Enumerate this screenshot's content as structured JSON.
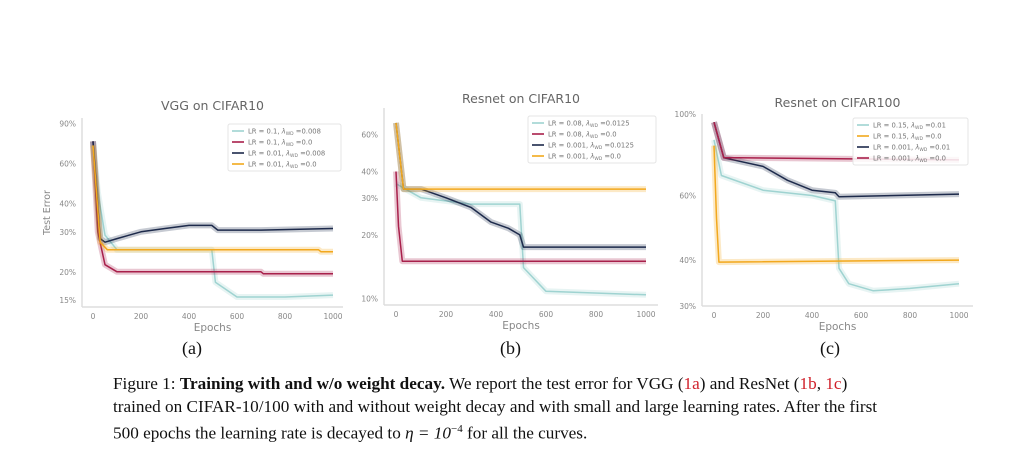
{
  "figure": {
    "sublabels": [
      "(a)",
      "(b)",
      "(c)"
    ],
    "caption": {
      "prefix": "Figure 1: ",
      "bold": "Training with and w/o weight decay.",
      "line1_a": " We report the test error for VGG (",
      "ref_1a": "1a",
      "line1_b": ") and ResNet (",
      "ref_1b": "1b",
      "line1_c": ", ",
      "ref_1c": "1c",
      "line1_d": ")",
      "line2": "trained on CIFAR-10/100 with and without weight decay and with small and large learning rates. After the first",
      "line3_a": "500 epochs the learning rate is decayed to ",
      "eta": "η = 10",
      "exp": "−4",
      "line3_b": " for all the curves."
    }
  },
  "colors": {
    "cyan": "#9fd3d1",
    "red": "#a8204b",
    "navy": "#1d2a4b",
    "orange": "#f2a81d",
    "axis": "#dddddd",
    "tick_text": "#888888",
    "title_text": "#666666"
  },
  "chart_data": [
    {
      "type": "line",
      "title": "VGG on CIFAR10",
      "xlabel": "Epochs",
      "ylabel": "Test Error",
      "yscale": "log",
      "xlim": [
        0,
        1000
      ],
      "ylim": [
        14,
        95
      ],
      "xticks": [
        0,
        200,
        400,
        600,
        800,
        1000
      ],
      "yticks": [
        15,
        20,
        30,
        40,
        60,
        90
      ],
      "ytick_labels": [
        "15%",
        "20%",
        "30%",
        "40%",
        "60%",
        "90%"
      ],
      "grid": false,
      "legend_position": "top-right",
      "series": [
        {
          "name": "LR = 0.1, λWD =0.008",
          "label_main": "LR = 0.1, ",
          "label_val": " =0.008",
          "color": "#9fd3d1",
          "points": [
            [
              0,
              75
            ],
            [
              20,
              45
            ],
            [
              50,
              29
            ],
            [
              100,
              25
            ],
            [
              300,
              25
            ],
            [
              495,
              25
            ],
            [
              510,
              18
            ],
            [
              600,
              15.5
            ],
            [
              800,
              15.5
            ],
            [
              1000,
              15.8
            ]
          ]
        },
        {
          "name": "LR = 0.1, λWD =0.0",
          "label_main": "LR = 0.1, ",
          "label_val": " =0.0",
          "color": "#a8204b",
          "points": [
            [
              0,
              75
            ],
            [
              20,
              30
            ],
            [
              50,
              21.5
            ],
            [
              100,
              20
            ],
            [
              700,
              20
            ],
            [
              710,
              19.6
            ],
            [
              1000,
              19.6
            ]
          ]
        },
        {
          "name": "LR = 0.01, λWD =0.008",
          "label_main": "LR = 0.01, ",
          "label_val": " =0.008",
          "color": "#1d2a4b",
          "points": [
            [
              0,
              75
            ],
            [
              30,
              28
            ],
            [
              50,
              27
            ],
            [
              100,
              28
            ],
            [
              200,
              30
            ],
            [
              300,
              31
            ],
            [
              400,
              32
            ],
            [
              495,
              32
            ],
            [
              520,
              30.5
            ],
            [
              700,
              30.5
            ],
            [
              1000,
              31
            ]
          ]
        },
        {
          "name": "LR = 0.01, λWD =0.0",
          "label_main": "LR = 0.01, ",
          "label_val": " =0.0",
          "color": "#f2a81d",
          "points": [
            [
              0,
              72
            ],
            [
              30,
              27
            ],
            [
              60,
              25
            ],
            [
              500,
              25
            ],
            [
              940,
              25
            ],
            [
              950,
              24.5
            ],
            [
              1000,
              24.5
            ]
          ]
        }
      ]
    },
    {
      "type": "line",
      "title": "Resnet on CIFAR10",
      "xlabel": "Epochs",
      "ylabel": "",
      "yscale": "log",
      "xlim": [
        0,
        1000
      ],
      "ylim": [
        9.3,
        80
      ],
      "xticks": [
        0,
        200,
        400,
        600,
        800,
        1000
      ],
      "yticks": [
        10,
        20,
        30,
        40,
        60
      ],
      "ytick_labels": [
        "10%",
        "20%",
        "30%",
        "40%",
        "60%"
      ],
      "grid": false,
      "legend_position": "top-right",
      "series": [
        {
          "name": "LR = 0.08, λWD =0.0125",
          "label_main": "LR = 0.08, ",
          "label_val": " =0.0125",
          "color": "#9fd3d1",
          "points": [
            [
              0,
              35
            ],
            [
              100,
              30
            ],
            [
              300,
              28
            ],
            [
              495,
              28
            ],
            [
              510,
              14
            ],
            [
              600,
              10.8
            ],
            [
              1000,
              10.4
            ]
          ]
        },
        {
          "name": "LR = 0.08, λWD =0.0",
          "label_main": "LR = 0.08, ",
          "label_val": " =0.0",
          "color": "#a8204b",
          "points": [
            [
              0,
              40
            ],
            [
              10,
              22
            ],
            [
              25,
              15
            ],
            [
              1000,
              15
            ]
          ]
        },
        {
          "name": "LR = 0.001, λWD =0.0125",
          "label_main": "LR = 0.001, ",
          "label_val": " =0.0125",
          "color": "#1d2a4b",
          "points": [
            [
              0,
              68
            ],
            [
              30,
              33
            ],
            [
              100,
              33
            ],
            [
              200,
              30
            ],
            [
              300,
              27
            ],
            [
              380,
              23
            ],
            [
              450,
              21.5
            ],
            [
              495,
              20
            ],
            [
              510,
              17.5
            ],
            [
              1000,
              17.5
            ]
          ]
        },
        {
          "name": "LR = 0.001, λWD =0.0",
          "label_main": "LR = 0.001, ",
          "label_val": " =0.0",
          "color": "#f2a81d",
          "points": [
            [
              0,
              68
            ],
            [
              30,
              33
            ],
            [
              1000,
              33
            ]
          ]
        }
      ]
    },
    {
      "type": "line",
      "title": "Resnet on CIFAR100",
      "xlabel": "Epochs",
      "ylabel": "",
      "yscale": "log",
      "xlim": [
        0,
        1000
      ],
      "ylim": [
        30,
        100
      ],
      "xticks": [
        0,
        200,
        400,
        600,
        800,
        1000
      ],
      "yticks": [
        30,
        40,
        60,
        100
      ],
      "ytick_labels": [
        "30%",
        "40%",
        "60%",
        "100%"
      ],
      "grid": false,
      "legend_position": "top-right",
      "series": [
        {
          "name": "LR = 0.15, λWD =0.01",
          "label_main": "LR = 0.15, ",
          "label_val": " =0.01",
          "color": "#9fd3d1",
          "points": [
            [
              0,
              85
            ],
            [
              30,
              68
            ],
            [
              200,
              62
            ],
            [
              400,
              60
            ],
            [
              495,
              58
            ],
            [
              510,
              38
            ],
            [
              550,
              34.5
            ],
            [
              650,
              33
            ],
            [
              800,
              33.5
            ],
            [
              1000,
              34.5
            ]
          ]
        },
        {
          "name": "LR = 0.15, λWD =0.0",
          "label_main": "LR = 0.15, ",
          "label_val": " =0.0",
          "color": "#f2a81d",
          "points": [
            [
              0,
              82
            ],
            [
              10,
              52
            ],
            [
              20,
              39.5
            ],
            [
              1000,
              40
            ]
          ]
        },
        {
          "name": "LR = 0.001, λWD =0.01",
          "label_main": "LR = 0.001, ",
          "label_val": " =0.01",
          "color": "#1d2a4b",
          "points": [
            [
              0,
              95
            ],
            [
              40,
              76
            ],
            [
              200,
              72
            ],
            [
              300,
              66
            ],
            [
              400,
              62
            ],
            [
              495,
              61
            ],
            [
              510,
              59.5
            ],
            [
              1000,
              60.5
            ]
          ]
        },
        {
          "name": "LR = 0.001, λWD =0.0",
          "label_main": "LR = 0.001, ",
          "label_val": " =0.0",
          "color": "#a8204b",
          "points": [
            [
              0,
              95
            ],
            [
              40,
              76
            ],
            [
              100,
              76
            ],
            [
              1000,
              75
            ]
          ]
        }
      ]
    }
  ]
}
